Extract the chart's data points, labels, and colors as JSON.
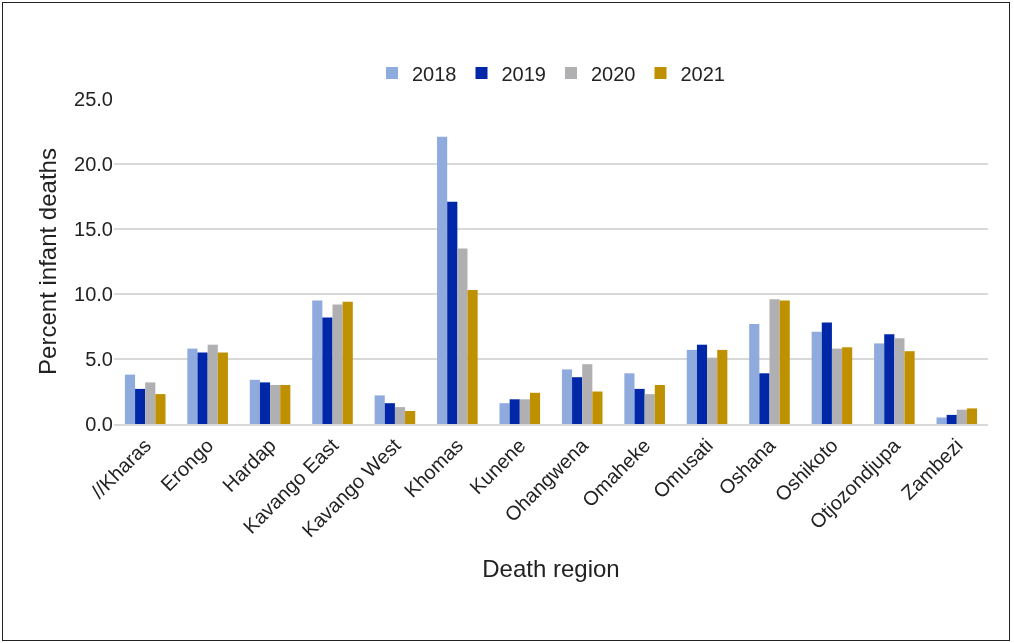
{
  "chart_data": {
    "type": "bar",
    "xlabel": "Death region",
    "ylabel": "Percent infant deaths",
    "categories": [
      "//Kharas",
      "Erongo",
      "Hardap",
      "Kavango East",
      "Kavango West",
      "Khomas",
      "Kunene",
      "Ohangwena",
      "Omaheke",
      "Omusati",
      "Oshana",
      "Oshikoto",
      "Otjozondjupa",
      "Zambezi"
    ],
    "series": [
      {
        "name": "2018",
        "color": "#8faadc",
        "values": [
          3.8,
          5.8,
          3.4,
          9.5,
          2.2,
          22.1,
          1.6,
          4.2,
          3.9,
          5.7,
          7.7,
          7.1,
          6.2,
          0.5
        ]
      },
      {
        "name": "2019",
        "color": "#0027a8",
        "values": [
          2.7,
          5.5,
          3.2,
          8.2,
          1.6,
          17.1,
          1.9,
          3.6,
          2.7,
          6.1,
          3.9,
          7.8,
          6.9,
          0.7
        ]
      },
      {
        "name": "2020",
        "color": "#b0b0b2",
        "values": [
          3.2,
          6.1,
          3.0,
          9.2,
          1.3,
          13.5,
          1.9,
          4.6,
          2.3,
          5.1,
          9.6,
          5.8,
          6.6,
          1.1
        ]
      },
      {
        "name": "2021",
        "color": "#bf9000",
        "values": [
          2.3,
          5.5,
          3.0,
          9.4,
          1.0,
          10.3,
          2.4,
          2.5,
          3.0,
          5.7,
          9.5,
          5.9,
          5.6,
          1.2
        ]
      }
    ],
    "ylim": [
      0,
      25
    ],
    "yticks": [
      {
        "value": 0,
        "label": "0.0"
      },
      {
        "value": 5,
        "label": "5.0"
      },
      {
        "value": 10,
        "label": "10.0"
      },
      {
        "value": 15,
        "label": "15.0"
      },
      {
        "value": 20,
        "label": "20.0"
      },
      {
        "value": 25,
        "label": "25.0"
      }
    ],
    "grid": "y",
    "legend": "top"
  }
}
